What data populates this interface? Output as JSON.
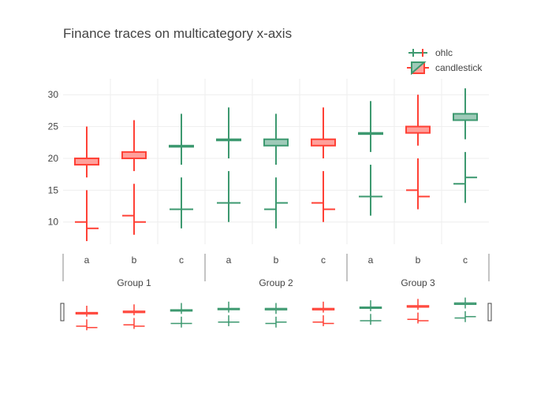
{
  "chart_data": {
    "type": "finance",
    "title": "Finance traces on multicategory x-axis",
    "xlabel": "",
    "ylabel": "",
    "grid": true,
    "legend_position": "top-right",
    "ylim": [
      6.5,
      32.5
    ],
    "yticks": [
      10,
      15,
      20,
      25,
      30
    ],
    "groups": [
      "Group 1",
      "Group 2",
      "Group 3"
    ],
    "categories": [
      "a",
      "b",
      "c"
    ],
    "colors": {
      "increasing": "#3d9970",
      "decreasing": "#ff4136",
      "increasing_fill": "#9ecab8",
      "decreasing_fill": "#ffa09b"
    },
    "series": [
      {
        "name": "ohlc",
        "type": "ohlc",
        "points": [
          {
            "group": "Group 1",
            "category": "a",
            "open": 10,
            "high": 15,
            "low": 7,
            "close": 9
          },
          {
            "group": "Group 1",
            "category": "b",
            "open": 11,
            "high": 16,
            "low": 8,
            "close": 10
          },
          {
            "group": "Group 1",
            "category": "c",
            "open": 12,
            "high": 17,
            "low": 9,
            "close": 12
          },
          {
            "group": "Group 2",
            "category": "a",
            "open": 13,
            "high": 18,
            "low": 10,
            "close": 13
          },
          {
            "group": "Group 2",
            "category": "b",
            "open": 12,
            "high": 17,
            "low": 9,
            "close": 13
          },
          {
            "group": "Group 2",
            "category": "c",
            "open": 13,
            "high": 18,
            "low": 10,
            "close": 12
          },
          {
            "group": "Group 3",
            "category": "a",
            "open": 14,
            "high": 19,
            "low": 11,
            "close": 14
          },
          {
            "group": "Group 3",
            "category": "b",
            "open": 15,
            "high": 20,
            "low": 12,
            "close": 14
          },
          {
            "group": "Group 3",
            "category": "c",
            "open": 16,
            "high": 21,
            "low": 13,
            "close": 17
          }
        ]
      },
      {
        "name": "candlestick",
        "type": "candlestick",
        "points": [
          {
            "group": "Group 1",
            "category": "a",
            "open": 20,
            "high": 25,
            "low": 17,
            "close": 19
          },
          {
            "group": "Group 1",
            "category": "b",
            "open": 21,
            "high": 26,
            "low": 18,
            "close": 20
          },
          {
            "group": "Group 1",
            "category": "c",
            "open": 22,
            "high": 27,
            "low": 19,
            "close": 22
          },
          {
            "group": "Group 2",
            "category": "a",
            "open": 23,
            "high": 28,
            "low": 20,
            "close": 23
          },
          {
            "group": "Group 2",
            "category": "b",
            "open": 22,
            "high": 27,
            "low": 19,
            "close": 23
          },
          {
            "group": "Group 2",
            "category": "c",
            "open": 23,
            "high": 28,
            "low": 20,
            "close": 22
          },
          {
            "group": "Group 3",
            "category": "a",
            "open": 24,
            "high": 29,
            "low": 21,
            "close": 24
          },
          {
            "group": "Group 3",
            "category": "b",
            "open": 25,
            "high": 30,
            "low": 22,
            "close": 24
          },
          {
            "group": "Group 3",
            "category": "c",
            "open": 26,
            "high": 31,
            "low": 23,
            "close": 27
          }
        ]
      }
    ],
    "rangeslider": true
  }
}
